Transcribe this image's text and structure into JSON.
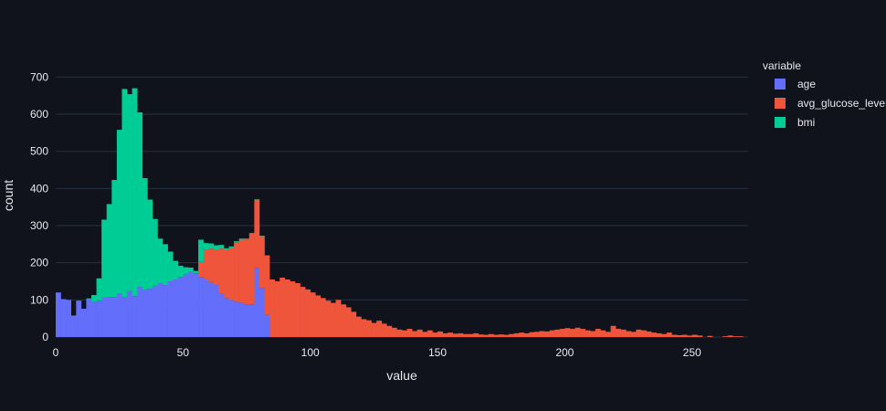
{
  "chart_data": {
    "type": "bar",
    "barmode": "stack",
    "xlabel": "value",
    "ylabel": "count",
    "xlim": [
      0,
      272
    ],
    "ylim": [
      0,
      760
    ],
    "x_ticks": [
      0,
      50,
      100,
      150,
      200,
      250
    ],
    "y_ticks": [
      0,
      100,
      200,
      300,
      400,
      500,
      600,
      700
    ],
    "grid": true,
    "legend": {
      "title": "variable",
      "position": "top-right"
    },
    "bin_width": 2,
    "series": [
      {
        "name": "age",
        "color": "#636efa",
        "bins": [
          [
            0,
            120
          ],
          [
            2,
            102
          ],
          [
            4,
            100
          ],
          [
            6,
            58
          ],
          [
            8,
            98
          ],
          [
            10,
            76
          ],
          [
            12,
            102
          ],
          [
            14,
            95
          ],
          [
            16,
            98
          ],
          [
            18,
            106
          ],
          [
            20,
            108
          ],
          [
            22,
            108
          ],
          [
            24,
            118
          ],
          [
            26,
            108
          ],
          [
            28,
            124
          ],
          [
            30,
            110
          ],
          [
            32,
            135
          ],
          [
            34,
            128
          ],
          [
            36,
            130
          ],
          [
            38,
            138
          ],
          [
            40,
            145
          ],
          [
            42,
            140
          ],
          [
            44,
            150
          ],
          [
            46,
            155
          ],
          [
            48,
            162
          ],
          [
            50,
            168
          ],
          [
            52,
            175
          ],
          [
            54,
            170
          ],
          [
            56,
            162
          ],
          [
            58,
            155
          ],
          [
            60,
            148
          ],
          [
            62,
            140
          ],
          [
            64,
            118
          ],
          [
            66,
            105
          ],
          [
            68,
            100
          ],
          [
            70,
            95
          ],
          [
            72,
            92
          ],
          [
            74,
            88
          ],
          [
            76,
            88
          ],
          [
            78,
            185
          ],
          [
            80,
            132
          ],
          [
            82,
            60
          ]
        ]
      },
      {
        "name": "avg_glucose_level",
        "color": "#ef553b",
        "bins": [
          [
            54,
            2
          ],
          [
            56,
            40
          ],
          [
            58,
            80
          ],
          [
            60,
            90
          ],
          [
            62,
            95
          ],
          [
            64,
            120
          ],
          [
            66,
            130
          ],
          [
            68,
            140
          ],
          [
            70,
            160
          ],
          [
            72,
            170
          ],
          [
            74,
            175
          ],
          [
            76,
            190
          ],
          [
            78,
            185
          ],
          [
            80,
            140
          ],
          [
            82,
            160
          ],
          [
            84,
            155
          ],
          [
            86,
            150
          ],
          [
            88,
            160
          ],
          [
            90,
            155
          ],
          [
            92,
            150
          ],
          [
            94,
            145
          ],
          [
            96,
            135
          ],
          [
            98,
            128
          ],
          [
            100,
            120
          ],
          [
            102,
            112
          ],
          [
            104,
            105
          ],
          [
            106,
            98
          ],
          [
            108,
            92
          ],
          [
            110,
            100
          ],
          [
            112,
            88
          ],
          [
            114,
            80
          ],
          [
            116,
            68
          ],
          [
            118,
            55
          ],
          [
            120,
            48
          ],
          [
            122,
            45
          ],
          [
            124,
            38
          ],
          [
            126,
            44
          ],
          [
            128,
            36
          ],
          [
            130,
            30
          ],
          [
            132,
            25
          ],
          [
            134,
            20
          ],
          [
            136,
            18
          ],
          [
            138,
            22
          ],
          [
            140,
            16
          ],
          [
            142,
            20
          ],
          [
            144,
            14
          ],
          [
            146,
            18
          ],
          [
            148,
            12
          ],
          [
            150,
            15
          ],
          [
            152,
            10
          ],
          [
            154,
            12
          ],
          [
            156,
            9
          ],
          [
            158,
            10
          ],
          [
            160,
            8
          ],
          [
            162,
            8
          ],
          [
            164,
            10
          ],
          [
            166,
            7
          ],
          [
            168,
            6
          ],
          [
            170,
            8
          ],
          [
            172,
            6
          ],
          [
            174,
            7
          ],
          [
            176,
            6
          ],
          [
            178,
            8
          ],
          [
            180,
            10
          ],
          [
            182,
            12
          ],
          [
            184,
            10
          ],
          [
            186,
            13
          ],
          [
            188,
            14
          ],
          [
            190,
            16
          ],
          [
            192,
            15
          ],
          [
            194,
            18
          ],
          [
            196,
            20
          ],
          [
            198,
            22
          ],
          [
            200,
            24
          ],
          [
            202,
            22
          ],
          [
            204,
            25
          ],
          [
            206,
            22
          ],
          [
            208,
            18
          ],
          [
            210,
            16
          ],
          [
            212,
            22
          ],
          [
            214,
            18
          ],
          [
            216,
            14
          ],
          [
            218,
            30
          ],
          [
            220,
            22
          ],
          [
            222,
            20
          ],
          [
            224,
            16
          ],
          [
            226,
            14
          ],
          [
            228,
            20
          ],
          [
            230,
            18
          ],
          [
            232,
            15
          ],
          [
            234,
            12
          ],
          [
            236,
            10
          ],
          [
            238,
            8
          ],
          [
            240,
            12
          ],
          [
            242,
            6
          ],
          [
            244,
            5
          ],
          [
            246,
            6
          ],
          [
            248,
            4
          ],
          [
            250,
            6
          ],
          [
            252,
            4
          ],
          [
            256,
            3
          ],
          [
            262,
            2
          ],
          [
            264,
            4
          ],
          [
            266,
            2
          ],
          [
            268,
            2
          ]
        ]
      },
      {
        "name": "bmi",
        "color": "#00cc96",
        "bins": [
          [
            12,
            2
          ],
          [
            14,
            18
          ],
          [
            16,
            60
          ],
          [
            18,
            210
          ],
          [
            20,
            250
          ],
          [
            22,
            315
          ],
          [
            24,
            440
          ],
          [
            26,
            560
          ],
          [
            28,
            530
          ],
          [
            30,
            560
          ],
          [
            32,
            470
          ],
          [
            34,
            300
          ],
          [
            36,
            240
          ],
          [
            38,
            180
          ],
          [
            40,
            120
          ],
          [
            42,
            110
          ],
          [
            44,
            80
          ],
          [
            46,
            50
          ],
          [
            48,
            30
          ],
          [
            50,
            20
          ],
          [
            52,
            12
          ],
          [
            54,
            6
          ],
          [
            56,
            60
          ],
          [
            58,
            18
          ],
          [
            60,
            14
          ],
          [
            62,
            12
          ],
          [
            64,
            10
          ],
          [
            66,
            4
          ],
          [
            68,
            4
          ],
          [
            70,
            3
          ],
          [
            72,
            3
          ],
          [
            74,
            2
          ],
          [
            76,
            2
          ],
          [
            78,
            1
          ],
          [
            80,
            1
          ]
        ]
      }
    ]
  }
}
